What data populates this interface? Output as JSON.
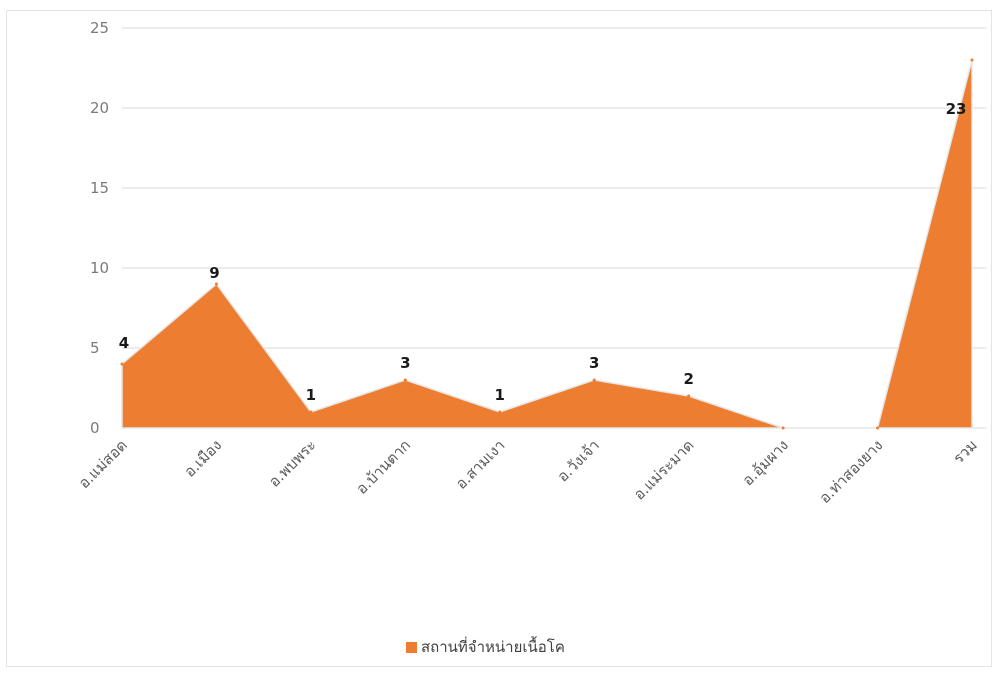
{
  "chart_data": {
    "type": "area",
    "categories": [
      "อ.แม่สอด",
      "อ.เมือง",
      "อ.พบพระ",
      "อ.บ้านตาก",
      "อ.สามเงา",
      "อ.วังเจ้า",
      "อ.แม่ระมาด",
      "อ.อุ้มผาง",
      "อ.ท่าสองยาง",
      "รวม"
    ],
    "series": [
      {
        "name": "สถานที่จำหน่ายเนื้อโค",
        "values": [
          4,
          9,
          1,
          3,
          1,
          3,
          2,
          0,
          0,
          23
        ]
      }
    ],
    "data_labels": [
      "4",
      "9",
      "1",
      "3",
      "1",
      "3",
      "2",
      "",
      "",
      "23"
    ],
    "ylim": [
      0,
      25
    ],
    "yticks": [
      0,
      5,
      10,
      15,
      20,
      25
    ],
    "grid": true,
    "legend_position": "bottom",
    "colors": {
      "area": "#ed7d31",
      "gridline": "#d9d9d9"
    }
  }
}
